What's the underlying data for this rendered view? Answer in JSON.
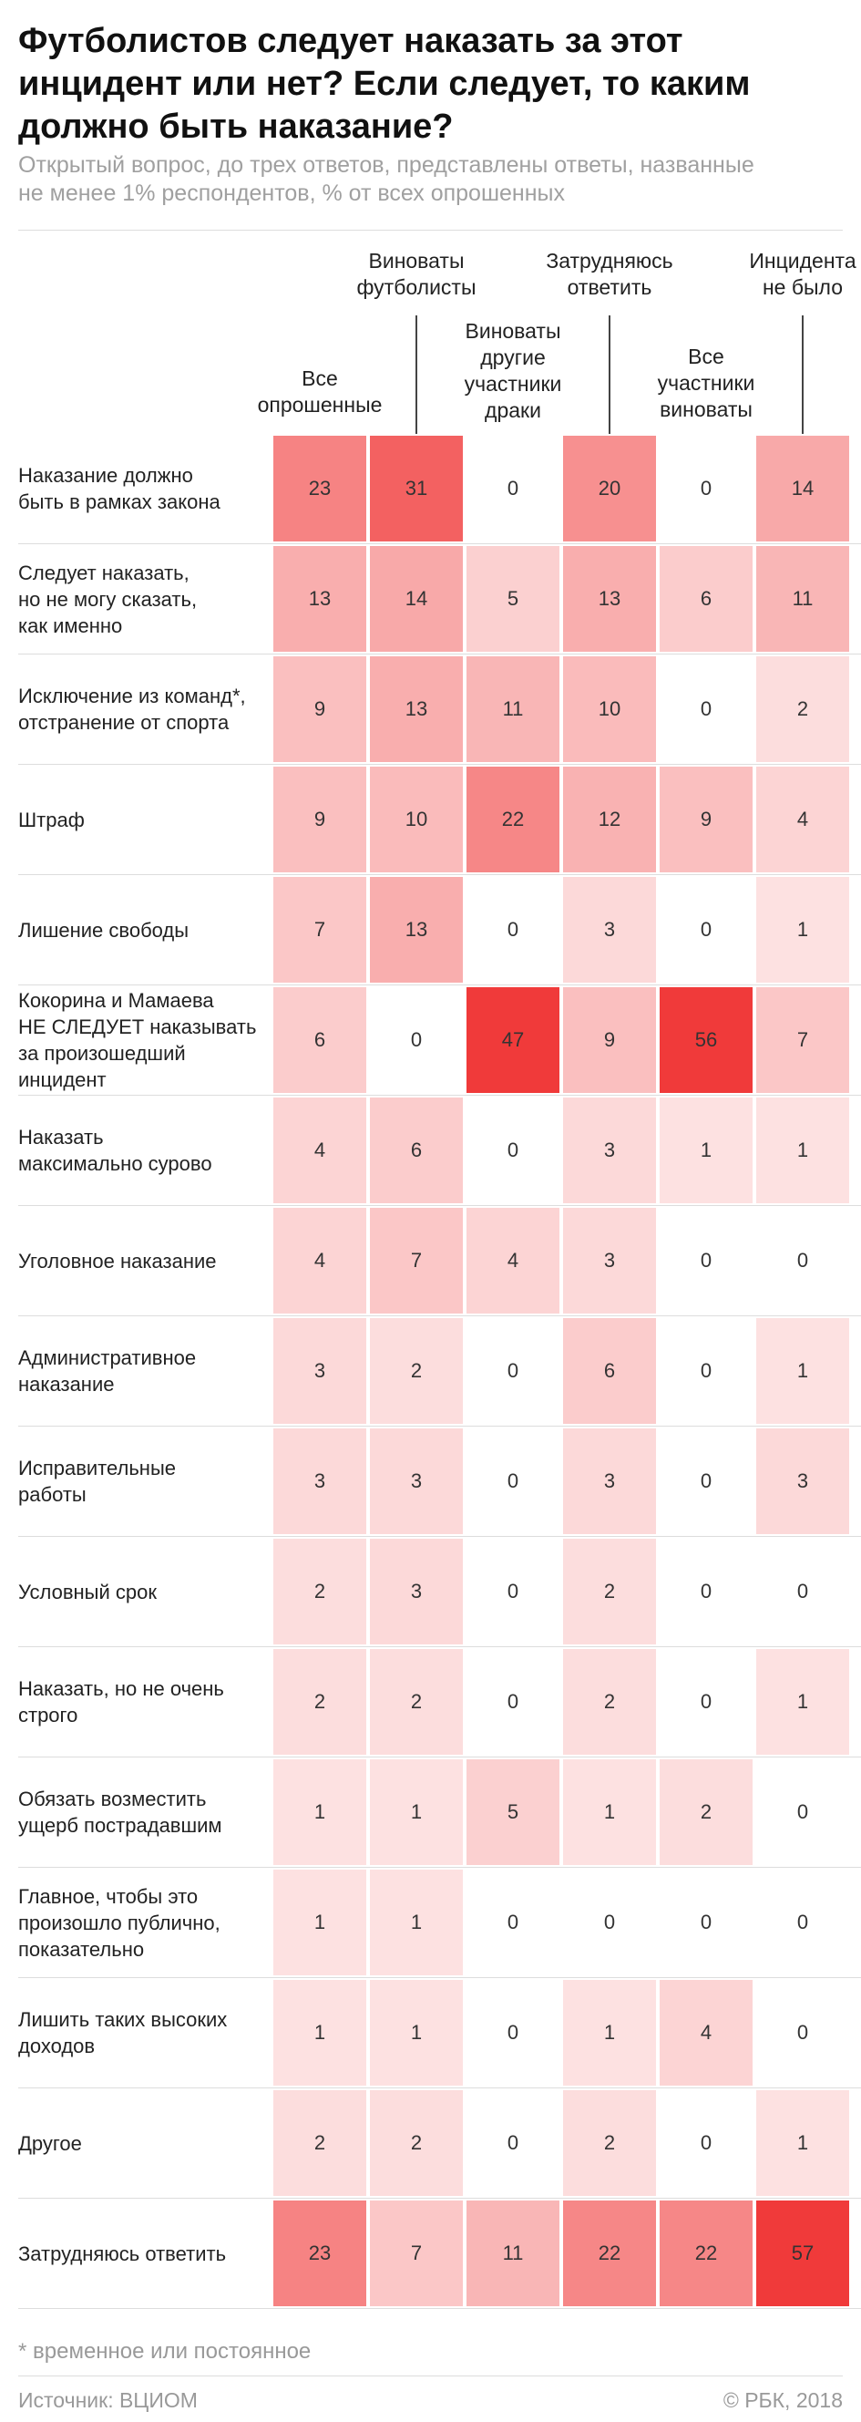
{
  "chart_data": {
    "type": "heatmap",
    "title": "Футболистов следует наказать за этот\nинцидент или нет? Если следует, то каким\nдолжно быть наказание?",
    "subtitle": "Открытый вопрос, до трех ответов, представлены ответы, названные\nне менее 1% респондентов, % от всех опрошенных",
    "columns": [
      "Все\nопрошенные",
      "Виноваты\nфутболисты",
      "Виноваты\nдругие\nучастники\nдраки",
      "Затрудняюсь\nответить",
      "Все\nучастники\nвиноваты",
      "Инцидента\nне было"
    ],
    "categories": [
      "Наказание должно\nбыть в рамках закона",
      "Следует наказать,\nно не могу сказать,\nкак именно",
      "Исключение из команд*,\nотстранение от спорта",
      "Штраф",
      "Лишение свободы",
      "Кокорина и Мамаева\nНЕ СЛЕДУЕТ наказывать\nза произошедший\nинцидент",
      "Наказать\nмаксимально сурово",
      "Уголовное наказание",
      "Административное\nнаказание",
      "Исправительные\nработы",
      "Условный срок",
      "Наказать, но не очень\nстрого",
      "Обязать возместить\nущерб пострадавшим",
      "Главное, чтобы это\nпроизошло публично,\nпоказательно",
      "Лишить таких высоких\nдоходов",
      "Другое",
      "Затрудняюсь ответить"
    ],
    "values": [
      [
        23,
        31,
        0,
        20,
        0,
        14
      ],
      [
        13,
        14,
        5,
        13,
        6,
        11
      ],
      [
        9,
        13,
        11,
        10,
        0,
        2
      ],
      [
        9,
        10,
        22,
        12,
        9,
        4
      ],
      [
        7,
        13,
        0,
        3,
        0,
        1
      ],
      [
        6,
        0,
        47,
        9,
        56,
        7
      ],
      [
        4,
        6,
        0,
        3,
        1,
        1
      ],
      [
        4,
        7,
        4,
        3,
        0,
        0
      ],
      [
        3,
        2,
        0,
        6,
        0,
        1
      ],
      [
        3,
        3,
        0,
        3,
        0,
        3
      ],
      [
        2,
        3,
        0,
        2,
        0,
        0
      ],
      [
        2,
        2,
        0,
        2,
        0,
        1
      ],
      [
        1,
        1,
        5,
        1,
        2,
        0
      ],
      [
        1,
        1,
        0,
        0,
        0,
        0
      ],
      [
        1,
        1,
        0,
        1,
        4,
        0
      ],
      [
        2,
        2,
        0,
        2,
        0,
        1
      ],
      [
        23,
        7,
        11,
        22,
        22,
        57
      ]
    ],
    "color": "#f03a3a",
    "footnote": "* временное или постоянное",
    "source": "Источник: ВЦИОМ",
    "copyright": "© РБК, 2018"
  }
}
